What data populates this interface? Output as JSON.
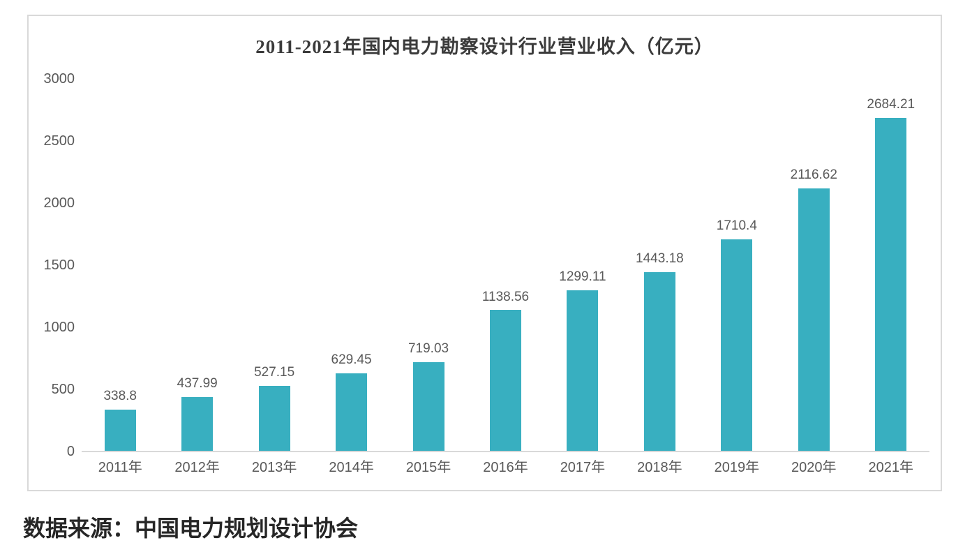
{
  "source_note": "数据来源：中国电力规划设计协会",
  "chart_data": {
    "type": "bar",
    "title": "2011-2021年国内电力勘察设计行业营业收入（亿元）",
    "categories": [
      "2011年",
      "2012年",
      "2013年",
      "2014年",
      "2015年",
      "2016年",
      "2017年",
      "2018年",
      "2019年",
      "2020年",
      "2021年"
    ],
    "values": [
      338.8,
      437.99,
      527.15,
      629.45,
      719.03,
      1138.56,
      1299.11,
      1443.18,
      1710.4,
      2116.62,
      2684.21
    ],
    "data_labels": [
      "338.8",
      "437.99",
      "527.15",
      "629.45",
      "719.03",
      "1138.56",
      "1299.11",
      "1443.18",
      "1710.4",
      "2116.62",
      "2684.21"
    ],
    "y_ticks": [
      0,
      500,
      1000,
      1500,
      2000,
      2500,
      3000
    ],
    "ylim": [
      0,
      3000
    ],
    "xlabel": "",
    "ylabel": "",
    "grid": false,
    "legend": "none",
    "colors": {
      "bar": "#38afc0",
      "data_label": "#595959",
      "tick_label": "#595959",
      "axis_line": "#d9d9d9",
      "card_border": "#d9d9d9",
      "title": "#3b3b3b",
      "source_text": "#262626"
    }
  }
}
